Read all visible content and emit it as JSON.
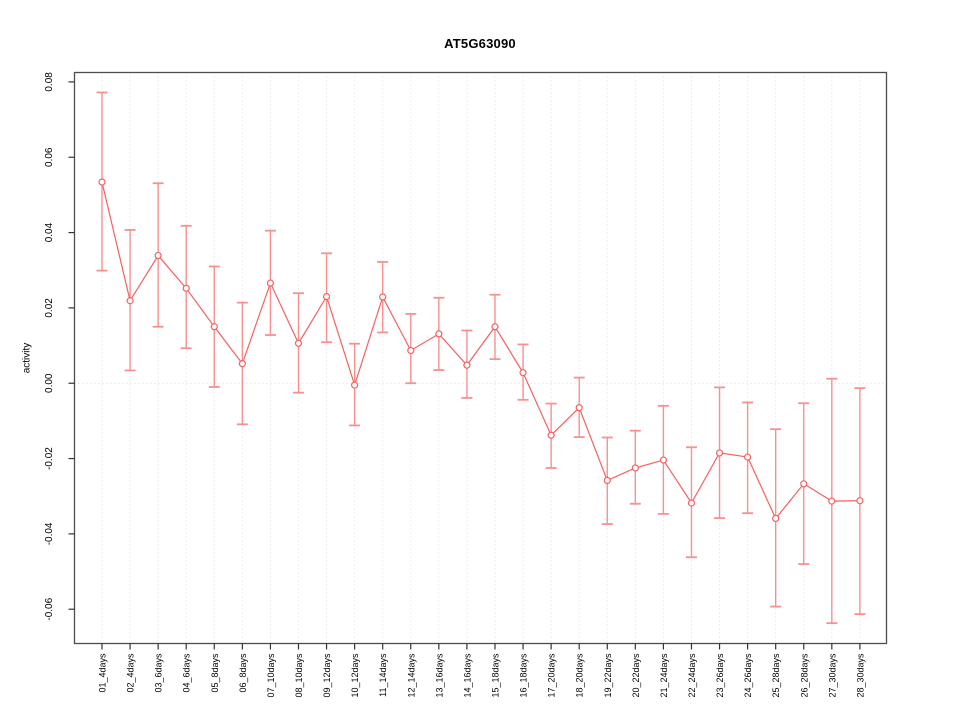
{
  "chart_data": {
    "type": "line",
    "title": "AT5G63090",
    "ylabel": "activity",
    "xlabel": "",
    "legend_position": "none",
    "marker": "open-circle",
    "grid": {
      "vertical_gridlines": "dotted, one per category",
      "horizontal_gridlines": "dotted zero line only",
      "box": "full plot border"
    },
    "categories": [
      "01_4days",
      "02_4days",
      "03_6days",
      "04_6days",
      "05_8days",
      "06_8days",
      "07_10days",
      "08_10days",
      "09_12days",
      "10_12days",
      "11_14days",
      "12_14days",
      "13_16days",
      "14_16days",
      "15_18days",
      "16_18days",
      "17_20days",
      "18_20days",
      "19_22days",
      "20_22days",
      "21_24days",
      "22_24days",
      "23_26days",
      "24_26days",
      "25_28days",
      "26_28days",
      "27_30days",
      "28_30days"
    ],
    "series": [
      {
        "name": "AT5G63090",
        "values": [
          0.0534,
          0.0219,
          0.0339,
          0.0252,
          0.015,
          0.0052,
          0.0266,
          0.0106,
          0.023,
          -0.0005,
          0.0229,
          0.0087,
          0.0131,
          0.0048,
          0.015,
          0.0028,
          -0.0138,
          -0.0065,
          -0.0258,
          -0.0225,
          -0.0204,
          -0.0318,
          -0.0185,
          -0.0196,
          -0.0359,
          -0.0267,
          -0.0313,
          -0.0312
        ],
        "error_low": [
          0.0299,
          0.0034,
          0.015,
          0.0093,
          -0.001,
          -0.0109,
          0.0128,
          -0.0025,
          0.0109,
          -0.0112,
          0.0135,
          0.0,
          0.0035,
          -0.0039,
          0.0064,
          -0.0044,
          -0.0225,
          -0.0143,
          -0.0374,
          -0.032,
          -0.0347,
          -0.0462,
          -0.0358,
          -0.0345,
          -0.0593,
          -0.048,
          -0.0637,
          -0.0613
        ],
        "error_high": [
          0.0772,
          0.0407,
          0.0531,
          0.0418,
          0.031,
          0.0214,
          0.0405,
          0.0239,
          0.0345,
          0.0105,
          0.0322,
          0.0184,
          0.0227,
          0.014,
          0.0235,
          0.0103,
          -0.0054,
          0.0015,
          -0.0144,
          -0.0126,
          -0.006,
          -0.017,
          -0.0011,
          -0.0051,
          -0.0122,
          -0.0053,
          0.0012,
          -0.0013
        ]
      }
    ],
    "ylim": [
      -0.0691,
      0.0825
    ],
    "yticks": [
      -0.06,
      -0.04,
      -0.02,
      0,
      0.02,
      0.04,
      0.06,
      0.08
    ],
    "ytick_labels": [
      "-0.06",
      "-0.04",
      "-0.02",
      "0.00",
      "0.02",
      "0.04",
      "0.06",
      "0.08"
    ],
    "colors": {
      "series_line": "#f6605f",
      "marker_stroke": "#f6605f",
      "error_bar": "#f89090",
      "grid": "#dcdcdc",
      "zero_line": "#d6d6d6",
      "axis_box": "#4d4d4d",
      "tick_mark": "#333333",
      "text": "#000000"
    }
  }
}
